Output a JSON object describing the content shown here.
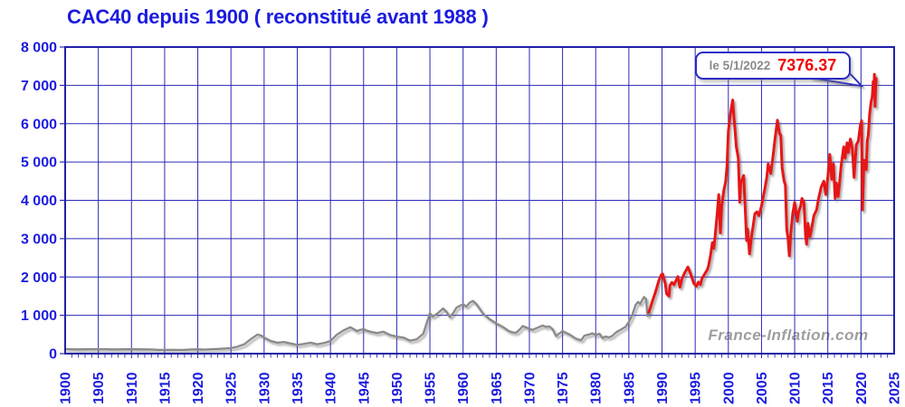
{
  "title": "CAC40 depuis 1900 ( reconstitué avant 1988 )",
  "watermark": "France-Inflation.com",
  "annotation": {
    "date_label": "le 5/1/2022",
    "value_label": "7376.37"
  },
  "colors": {
    "title_text": "#1b1bdf",
    "axis_text": "#1b1bdf",
    "grid": "#2a2ab8",
    "plot_border": "#2020a8",
    "series_pre_1988": "#8a8a8a",
    "series_post_1988": "#e61212",
    "annotation_border": "#2a2ac8",
    "annotation_date": "#8a8a8a",
    "annotation_value": "#ee0000",
    "watermark": "#8e8e8e",
    "background": "#ffffff"
  },
  "axes": {
    "y": {
      "min": 0,
      "max": 8000,
      "tick_step": 1000,
      "tick_labels": [
        "0",
        "1 000",
        "2 000",
        "3 000",
        "4 000",
        "5 000",
        "6 000",
        "7 000",
        "8 000"
      ]
    },
    "x": {
      "min": 1900,
      "max": 2025,
      "tick_step": 5,
      "minor_tick_step": 1,
      "tick_labels": [
        "1900",
        "1905",
        "1910",
        "1915",
        "1920",
        "1925",
        "1930",
        "1935",
        "1940",
        "1945",
        "1950",
        "1955",
        "1960",
        "1965",
        "1970",
        "1975",
        "1980",
        "1985",
        "1990",
        "1995",
        "2000",
        "2005",
        "2010",
        "2015",
        "2020",
        "2025"
      ]
    }
  },
  "chart_data": {
    "type": "line",
    "title": "CAC40 depuis 1900 ( reconstitué avant 1988 )",
    "xlabel": "",
    "ylabel": "",
    "x_range": [
      1900,
      2025
    ],
    "y_range": [
      0,
      8000
    ],
    "grid": true,
    "legend": "none",
    "annotations": [
      {
        "x": 2022.0,
        "y": 7376.37,
        "label": "le 5/1/2022 7376.37"
      }
    ],
    "series": [
      {
        "name": "CAC40 reconstitué (avant 1988)",
        "color": "#8a8a8a",
        "points": [
          [
            1900,
            120
          ],
          [
            1901,
            115
          ],
          [
            1902,
            112
          ],
          [
            1903,
            114
          ],
          [
            1904,
            115
          ],
          [
            1905,
            117
          ],
          [
            1906,
            116
          ],
          [
            1907,
            110
          ],
          [
            1908,
            112
          ],
          [
            1909,
            114
          ],
          [
            1910,
            115
          ],
          [
            1911,
            113
          ],
          [
            1912,
            112
          ],
          [
            1913,
            108
          ],
          [
            1914,
            100
          ],
          [
            1915,
            96
          ],
          [
            1916,
            99
          ],
          [
            1917,
            96
          ],
          [
            1918,
            100
          ],
          [
            1919,
            108
          ],
          [
            1920,
            114
          ],
          [
            1921,
            106
          ],
          [
            1922,
            115
          ],
          [
            1923,
            122
          ],
          [
            1924,
            132
          ],
          [
            1925,
            145
          ],
          [
            1926,
            185
          ],
          [
            1927,
            245
          ],
          [
            1928,
            380
          ],
          [
            1929,
            500
          ],
          [
            1929.6,
            470
          ],
          [
            1930,
            420
          ],
          [
            1931,
            330
          ],
          [
            1932,
            285
          ],
          [
            1933,
            305
          ],
          [
            1934,
            265
          ],
          [
            1935,
            230
          ],
          [
            1936,
            255
          ],
          [
            1937,
            285
          ],
          [
            1938,
            245
          ],
          [
            1939,
            275
          ],
          [
            1940,
            330
          ],
          [
            1941,
            500
          ],
          [
            1942,
            610
          ],
          [
            1943,
            690
          ],
          [
            1943.6,
            630
          ],
          [
            1944,
            590
          ],
          [
            1944.5,
            620
          ],
          [
            1945,
            640
          ],
          [
            1945.5,
            600
          ],
          [
            1946,
            575
          ],
          [
            1947,
            535
          ],
          [
            1948,
            570
          ],
          [
            1949,
            485
          ],
          [
            1950,
            445
          ],
          [
            1951,
            420
          ],
          [
            1952,
            340
          ],
          [
            1953,
            375
          ],
          [
            1954,
            520
          ],
          [
            1955,
            1060
          ],
          [
            1955.4,
            970
          ],
          [
            1956,
            1030
          ],
          [
            1957,
            1180
          ],
          [
            1957.5,
            1090
          ],
          [
            1958,
            955
          ],
          [
            1958.5,
            1060
          ],
          [
            1959,
            1200
          ],
          [
            1960,
            1290
          ],
          [
            1960.5,
            1230
          ],
          [
            1961,
            1330
          ],
          [
            1961.5,
            1375
          ],
          [
            1962,
            1295
          ],
          [
            1962.5,
            1170
          ],
          [
            1963,
            1045
          ],
          [
            1964,
            900
          ],
          [
            1965,
            790
          ],
          [
            1966,
            695
          ],
          [
            1967,
            580
          ],
          [
            1967.5,
            555
          ],
          [
            1968,
            545
          ],
          [
            1968.6,
            640
          ],
          [
            1969,
            720
          ],
          [
            1969.5,
            685
          ],
          [
            1970,
            650
          ],
          [
            1970.5,
            620
          ],
          [
            1971,
            660
          ],
          [
            1972,
            735
          ],
          [
            1972.5,
            700
          ],
          [
            1973,
            710
          ],
          [
            1973.5,
            640
          ],
          [
            1974,
            460
          ],
          [
            1975,
            590
          ],
          [
            1975.5,
            545
          ],
          [
            1976,
            505
          ],
          [
            1977,
            395
          ],
          [
            1977.8,
            350
          ],
          [
            1978.3,
            470
          ],
          [
            1979,
            500
          ],
          [
            1979.5,
            530
          ],
          [
            1980,
            485
          ],
          [
            1980.6,
            520
          ],
          [
            1981,
            405
          ],
          [
            1981.5,
            445
          ],
          [
            1982,
            425
          ],
          [
            1982.5,
            465
          ],
          [
            1983,
            545
          ],
          [
            1983.5,
            600
          ],
          [
            1984,
            650
          ],
          [
            1984.5,
            700
          ],
          [
            1985,
            830
          ],
          [
            1985.5,
            1000
          ],
          [
            1986,
            1270
          ],
          [
            1986.4,
            1350
          ],
          [
            1986.7,
            1300
          ],
          [
            1987,
            1395
          ],
          [
            1987.3,
            1480
          ],
          [
            1987.6,
            1420
          ],
          [
            1987.8,
            985
          ],
          [
            1988,
            1080
          ]
        ]
      },
      {
        "name": "CAC40 (depuis 1988)",
        "color": "#e61212",
        "points": [
          [
            1988,
            1080
          ],
          [
            1988.3,
            1230
          ],
          [
            1988.6,
            1400
          ],
          [
            1989,
            1600
          ],
          [
            1989.5,
            1900
          ],
          [
            1989.9,
            2060
          ],
          [
            1990.1,
            2080
          ],
          [
            1990.3,
            1940
          ],
          [
            1990.5,
            1820
          ],
          [
            1990.7,
            1560
          ],
          [
            1991.05,
            1500
          ],
          [
            1991.2,
            1780
          ],
          [
            1991.5,
            1860
          ],
          [
            1991.8,
            1800
          ],
          [
            1992,
            1870
          ],
          [
            1992.4,
            2010
          ],
          [
            1992.7,
            1730
          ],
          [
            1993,
            1950
          ],
          [
            1993.4,
            2100
          ],
          [
            1993.9,
            2260
          ],
          [
            1994.3,
            2090
          ],
          [
            1994.8,
            1830
          ],
          [
            1995.2,
            1760
          ],
          [
            1995.5,
            1870
          ],
          [
            1995.8,
            1800
          ],
          [
            1996,
            1950
          ],
          [
            1996.5,
            2100
          ],
          [
            1996.8,
            2180
          ],
          [
            1997,
            2280
          ],
          [
            1997.3,
            2550
          ],
          [
            1997.6,
            2900
          ],
          [
            1997.8,
            2750
          ],
          [
            1998,
            3050
          ],
          [
            1998.3,
            3600
          ],
          [
            1998.55,
            4150
          ],
          [
            1998.8,
            3150
          ],
          [
            1999,
            3850
          ],
          [
            1999.3,
            4250
          ],
          [
            1999.6,
            4500
          ],
          [
            1999.8,
            4900
          ],
          [
            2000,
            5800
          ],
          [
            2000.2,
            6100
          ],
          [
            2000.4,
            6350
          ],
          [
            2000.65,
            6620
          ],
          [
            2000.8,
            6250
          ],
          [
            2001,
            5850
          ],
          [
            2001.2,
            5400
          ],
          [
            2001.5,
            5100
          ],
          [
            2001.72,
            3950
          ],
          [
            2001.9,
            4500
          ],
          [
            2002.1,
            4550
          ],
          [
            2002.3,
            4650
          ],
          [
            2002.5,
            3950
          ],
          [
            2002.75,
            2950
          ],
          [
            2002.9,
            3250
          ],
          [
            2003.2,
            2600
          ],
          [
            2003.5,
            3050
          ],
          [
            2003.8,
            3400
          ],
          [
            2004,
            3650
          ],
          [
            2004.3,
            3700
          ],
          [
            2004.6,
            3600
          ],
          [
            2005,
            3850
          ],
          [
            2005.5,
            4300
          ],
          [
            2005.8,
            4600
          ],
          [
            2006,
            4950
          ],
          [
            2006.4,
            4700
          ],
          [
            2006.7,
            5100
          ],
          [
            2007,
            5550
          ],
          [
            2007.4,
            6090
          ],
          [
            2007.7,
            5750
          ],
          [
            2007.9,
            5700
          ],
          [
            2008.1,
            4850
          ],
          [
            2008.4,
            4500
          ],
          [
            2008.6,
            4400
          ],
          [
            2008.8,
            3250
          ],
          [
            2009,
            3000
          ],
          [
            2009.2,
            2550
          ],
          [
            2009.4,
            3100
          ],
          [
            2009.7,
            3650
          ],
          [
            2010,
            3950
          ],
          [
            2010.4,
            3450
          ],
          [
            2010.6,
            3700
          ],
          [
            2010.9,
            3850
          ],
          [
            2011.1,
            4050
          ],
          [
            2011.4,
            3950
          ],
          [
            2011.65,
            3050
          ],
          [
            2011.8,
            2850
          ],
          [
            2012,
            3400
          ],
          [
            2012.3,
            3050
          ],
          [
            2012.6,
            3300
          ],
          [
            2012.9,
            3600
          ],
          [
            2013.3,
            3750
          ],
          [
            2013.6,
            4050
          ],
          [
            2014,
            4350
          ],
          [
            2014.4,
            4500
          ],
          [
            2014.7,
            4150
          ],
          [
            2015,
            4600
          ],
          [
            2015.3,
            5200
          ],
          [
            2015.6,
            4550
          ],
          [
            2015.85,
            4950
          ],
          [
            2016.1,
            4050
          ],
          [
            2016.3,
            4450
          ],
          [
            2016.55,
            4100
          ],
          [
            2016.8,
            4500
          ],
          [
            2017,
            4900
          ],
          [
            2017.4,
            5400
          ],
          [
            2017.6,
            5100
          ],
          [
            2017.9,
            5500
          ],
          [
            2018.1,
            5250
          ],
          [
            2018.4,
            5600
          ],
          [
            2018.7,
            5350
          ],
          [
            2018.95,
            4600
          ],
          [
            2019.3,
            5450
          ],
          [
            2019.6,
            5550
          ],
          [
            2019.9,
            5950
          ],
          [
            2020.1,
            6080
          ],
          [
            2020.22,
            3750
          ],
          [
            2020.45,
            5050
          ],
          [
            2020.6,
            4950
          ],
          [
            2020.8,
            4800
          ],
          [
            2020.95,
            5550
          ],
          [
            2021.1,
            5700
          ],
          [
            2021.3,
            6250
          ],
          [
            2021.5,
            6550
          ],
          [
            2021.7,
            6700
          ],
          [
            2021.85,
            7100
          ],
          [
            2021.95,
            6750
          ],
          [
            2022.02,
            7290
          ],
          [
            2022.12,
            6450
          ],
          [
            2022.2,
            6900
          ],
          [
            2022.3,
            7180
          ]
        ]
      }
    ]
  }
}
